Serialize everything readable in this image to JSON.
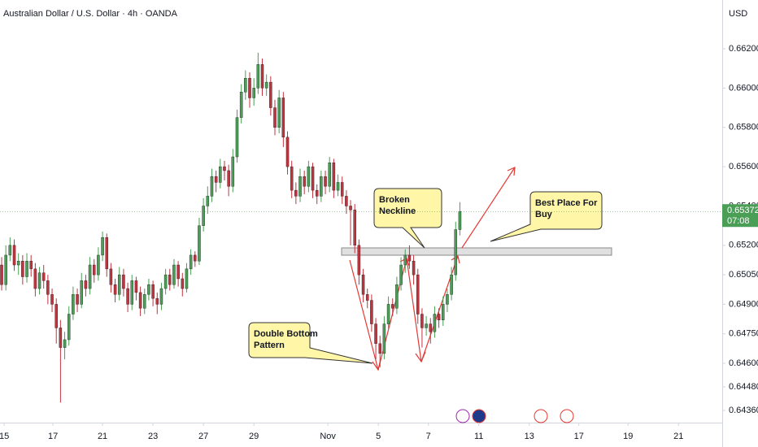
{
  "chart_data": {
    "type": "candlestick",
    "title": "Australian Dollar / U.S. Dollar · 4h · OANDA",
    "currency": "USD",
    "up_color": "#4a9e55",
    "down_color": "#c0343f",
    "ylim": [
      0.64298,
      0.66448
    ],
    "xlim": [
      -0.39,
      171.4
    ],
    "yticks": [
      {
        "value": 0.662,
        "label": "0.66200"
      },
      {
        "value": 0.66,
        "label": "0.66000"
      },
      {
        "value": 0.658,
        "label": "0.65800"
      },
      {
        "value": 0.656,
        "label": "0.65600"
      },
      {
        "value": 0.654,
        "label": "0.65400"
      },
      {
        "value": 0.652,
        "label": "0.65200"
      },
      {
        "value": 0.6505,
        "label": "0.65050"
      },
      {
        "value": 0.649,
        "label": "0.64900"
      },
      {
        "value": 0.6475,
        "label": "0.64750"
      },
      {
        "value": 0.646,
        "label": "0.64600"
      },
      {
        "value": 0.6448,
        "label": "0.64480"
      },
      {
        "value": 0.6436,
        "label": "0.64360"
      }
    ],
    "xticks": [
      {
        "value": 0.6,
        "label": "15"
      },
      {
        "value": 12.2,
        "label": "17"
      },
      {
        "value": 24,
        "label": "21"
      },
      {
        "value": 36,
        "label": "23"
      },
      {
        "value": 48,
        "label": "27"
      },
      {
        "value": 60,
        "label": "29"
      },
      {
        "value": 77.6,
        "label": "Nov"
      },
      {
        "value": 89.6,
        "label": "5"
      },
      {
        "value": 101.5,
        "label": "7"
      },
      {
        "value": 113.5,
        "label": "11"
      },
      {
        "value": 125.5,
        "label": "13"
      },
      {
        "value": 137.3,
        "label": "17"
      },
      {
        "value": 149,
        "label": "19"
      },
      {
        "value": 161,
        "label": "21"
      }
    ],
    "last_price": {
      "value": 0.65372,
      "label": "0.65372"
    },
    "countdown": "07:08",
    "annotations": [
      {
        "lines": [
          "Broken",
          "Neckline"
        ]
      },
      {
        "lines": [
          "Best Place For",
          "Buy"
        ]
      },
      {
        "lines": [
          "Double Bottom",
          "Pattern"
        ]
      }
    ],
    "candles": [
      [
        0.651,
        0.6514,
        0.6497,
        0.65
      ],
      [
        0.65,
        0.652,
        0.6497,
        0.6515
      ],
      [
        0.6515,
        0.6524,
        0.6512,
        0.652
      ],
      [
        0.652,
        0.6523,
        0.6507,
        0.651
      ],
      [
        0.651,
        0.6516,
        0.6505,
        0.6512
      ],
      [
        0.6512,
        0.6515,
        0.65,
        0.6504
      ],
      [
        0.6504,
        0.6516,
        0.6501,
        0.6512
      ],
      [
        0.6512,
        0.6515,
        0.6504,
        0.6508
      ],
      [
        0.6508,
        0.6511,
        0.6494,
        0.6498
      ],
      [
        0.6498,
        0.6509,
        0.6495,
        0.6506
      ],
      [
        0.6506,
        0.651,
        0.6498,
        0.6502
      ],
      [
        0.6502,
        0.6505,
        0.649,
        0.6495
      ],
      [
        0.6495,
        0.6498,
        0.6486,
        0.649
      ],
      [
        0.649,
        0.6493,
        0.647,
        0.6478
      ],
      [
        0.6478,
        0.6482,
        0.644,
        0.6468
      ],
      [
        0.6468,
        0.6476,
        0.6462,
        0.6472
      ],
      [
        0.6472,
        0.6489,
        0.6469,
        0.6485
      ],
      [
        0.6485,
        0.6499,
        0.6482,
        0.6495
      ],
      [
        0.6495,
        0.6498,
        0.6486,
        0.649
      ],
      [
        0.649,
        0.6506,
        0.6488,
        0.6502
      ],
      [
        0.6502,
        0.6505,
        0.6494,
        0.6498
      ],
      [
        0.6498,
        0.6514,
        0.6495,
        0.651
      ],
      [
        0.651,
        0.6513,
        0.6501,
        0.6505
      ],
      [
        0.6505,
        0.6519,
        0.6502,
        0.6515
      ],
      [
        0.6515,
        0.6527,
        0.6512,
        0.6524
      ],
      [
        0.6524,
        0.6526,
        0.6504,
        0.6508
      ],
      [
        0.6508,
        0.6511,
        0.6496,
        0.65
      ],
      [
        0.65,
        0.6503,
        0.6491,
        0.6495
      ],
      [
        0.6495,
        0.6509,
        0.6492,
        0.6505
      ],
      [
        0.6505,
        0.6508,
        0.6494,
        0.6498
      ],
      [
        0.6498,
        0.6501,
        0.6486,
        0.649
      ],
      [
        0.649,
        0.6505,
        0.6487,
        0.6502
      ],
      [
        0.6502,
        0.6504,
        0.6492,
        0.6496
      ],
      [
        0.6496,
        0.6499,
        0.6484,
        0.6488
      ],
      [
        0.6488,
        0.6498,
        0.6485,
        0.6495
      ],
      [
        0.6495,
        0.6503,
        0.6492,
        0.65
      ],
      [
        0.65,
        0.6502,
        0.6489,
        0.6493
      ],
      [
        0.6493,
        0.6496,
        0.6485,
        0.649
      ],
      [
        0.649,
        0.6501,
        0.6487,
        0.6498
      ],
      [
        0.6498,
        0.6508,
        0.6495,
        0.6505
      ],
      [
        0.6505,
        0.6508,
        0.6497,
        0.65
      ],
      [
        0.65,
        0.6513,
        0.6498,
        0.651
      ],
      [
        0.651,
        0.6512,
        0.6499,
        0.6503
      ],
      [
        0.6503,
        0.6506,
        0.6494,
        0.6498
      ],
      [
        0.6498,
        0.6511,
        0.6496,
        0.6508
      ],
      [
        0.6508,
        0.6518,
        0.6505,
        0.6515
      ],
      [
        0.6515,
        0.6517,
        0.6509,
        0.6512
      ],
      [
        0.6512,
        0.6534,
        0.651,
        0.653
      ],
      [
        0.653,
        0.6544,
        0.6527,
        0.654
      ],
      [
        0.654,
        0.655,
        0.6536,
        0.6545
      ],
      [
        0.6545,
        0.6559,
        0.6542,
        0.6555
      ],
      [
        0.6555,
        0.6558,
        0.6547,
        0.6552
      ],
      [
        0.6552,
        0.6564,
        0.6549,
        0.656
      ],
      [
        0.656,
        0.6563,
        0.6553,
        0.6558
      ],
      [
        0.6558,
        0.6561,
        0.6545,
        0.655
      ],
      [
        0.655,
        0.6569,
        0.6547,
        0.6565
      ],
      [
        0.6565,
        0.6589,
        0.6562,
        0.6585
      ],
      [
        0.6585,
        0.6602,
        0.6582,
        0.6598
      ],
      [
        0.6598,
        0.6609,
        0.6594,
        0.6605
      ],
      [
        0.6605,
        0.6608,
        0.659,
        0.6595
      ],
      [
        0.6595,
        0.6605,
        0.6591,
        0.66
      ],
      [
        0.66,
        0.6618,
        0.6597,
        0.6612
      ],
      [
        0.6612,
        0.6615,
        0.6596,
        0.66
      ],
      [
        0.66,
        0.6607,
        0.6596,
        0.6603
      ],
      [
        0.6603,
        0.6606,
        0.6586,
        0.659
      ],
      [
        0.659,
        0.6594,
        0.6576,
        0.658
      ],
      [
        0.658,
        0.6599,
        0.6577,
        0.6595
      ],
      [
        0.6595,
        0.6598,
        0.657,
        0.6575
      ],
      [
        0.6575,
        0.6578,
        0.6556,
        0.656
      ],
      [
        0.656,
        0.6563,
        0.6544,
        0.6548
      ],
      [
        0.6548,
        0.6552,
        0.6541,
        0.6545
      ],
      [
        0.6545,
        0.6559,
        0.6542,
        0.6555
      ],
      [
        0.6555,
        0.6558,
        0.6546,
        0.655
      ],
      [
        0.655,
        0.6563,
        0.6547,
        0.656
      ],
      [
        0.656,
        0.6562,
        0.6544,
        0.6548
      ],
      [
        0.6548,
        0.6551,
        0.6541,
        0.6545
      ],
      [
        0.6545,
        0.6558,
        0.6542,
        0.6555
      ],
      [
        0.6555,
        0.6558,
        0.6546,
        0.655
      ],
      [
        0.655,
        0.6565,
        0.6547,
        0.6562
      ],
      [
        0.6562,
        0.6564,
        0.6544,
        0.6548
      ],
      [
        0.6548,
        0.6556,
        0.6545,
        0.6552
      ],
      [
        0.6552,
        0.6555,
        0.6541,
        0.6545
      ],
      [
        0.6545,
        0.6548,
        0.6536,
        0.654
      ],
      [
        0.654,
        0.6543,
        0.652,
        0.6538
      ],
      [
        0.6538,
        0.6541,
        0.6516,
        0.652
      ],
      [
        0.652,
        0.6523,
        0.65,
        0.6505
      ],
      [
        0.6505,
        0.6508,
        0.6491,
        0.6495
      ],
      [
        0.6495,
        0.6498,
        0.6488,
        0.6492
      ],
      [
        0.6492,
        0.6495,
        0.6476,
        0.648
      ],
      [
        0.648,
        0.6483,
        0.6462,
        0.647
      ],
      [
        0.647,
        0.6474,
        0.6458,
        0.6465
      ],
      [
        0.6465,
        0.6484,
        0.6462,
        0.648
      ],
      [
        0.648,
        0.6494,
        0.6477,
        0.649
      ],
      [
        0.649,
        0.6493,
        0.6484,
        0.6488
      ],
      [
        0.6488,
        0.6504,
        0.6485,
        0.65
      ],
      [
        0.65,
        0.6514,
        0.6497,
        0.651
      ],
      [
        0.651,
        0.6518,
        0.6506,
        0.6515
      ],
      [
        0.6515,
        0.652,
        0.6508,
        0.6512
      ],
      [
        0.6512,
        0.6515,
        0.65,
        0.6505
      ],
      [
        0.6505,
        0.6508,
        0.648,
        0.6485
      ],
      [
        0.6485,
        0.6488,
        0.6468,
        0.6478
      ],
      [
        0.6478,
        0.6484,
        0.6474,
        0.648
      ],
      [
        0.648,
        0.6483,
        0.647,
        0.6476
      ],
      [
        0.6476,
        0.6489,
        0.6473,
        0.6485
      ],
      [
        0.6485,
        0.6488,
        0.6478,
        0.6482
      ],
      [
        0.6482,
        0.6494,
        0.6479,
        0.649
      ],
      [
        0.649,
        0.6498,
        0.6486,
        0.6495
      ],
      [
        0.6495,
        0.6509,
        0.6492,
        0.6505
      ],
      [
        0.6505,
        0.6532,
        0.6502,
        0.6528
      ],
      [
        0.6528,
        0.6542,
        0.6525,
        0.65372
      ]
    ]
  }
}
